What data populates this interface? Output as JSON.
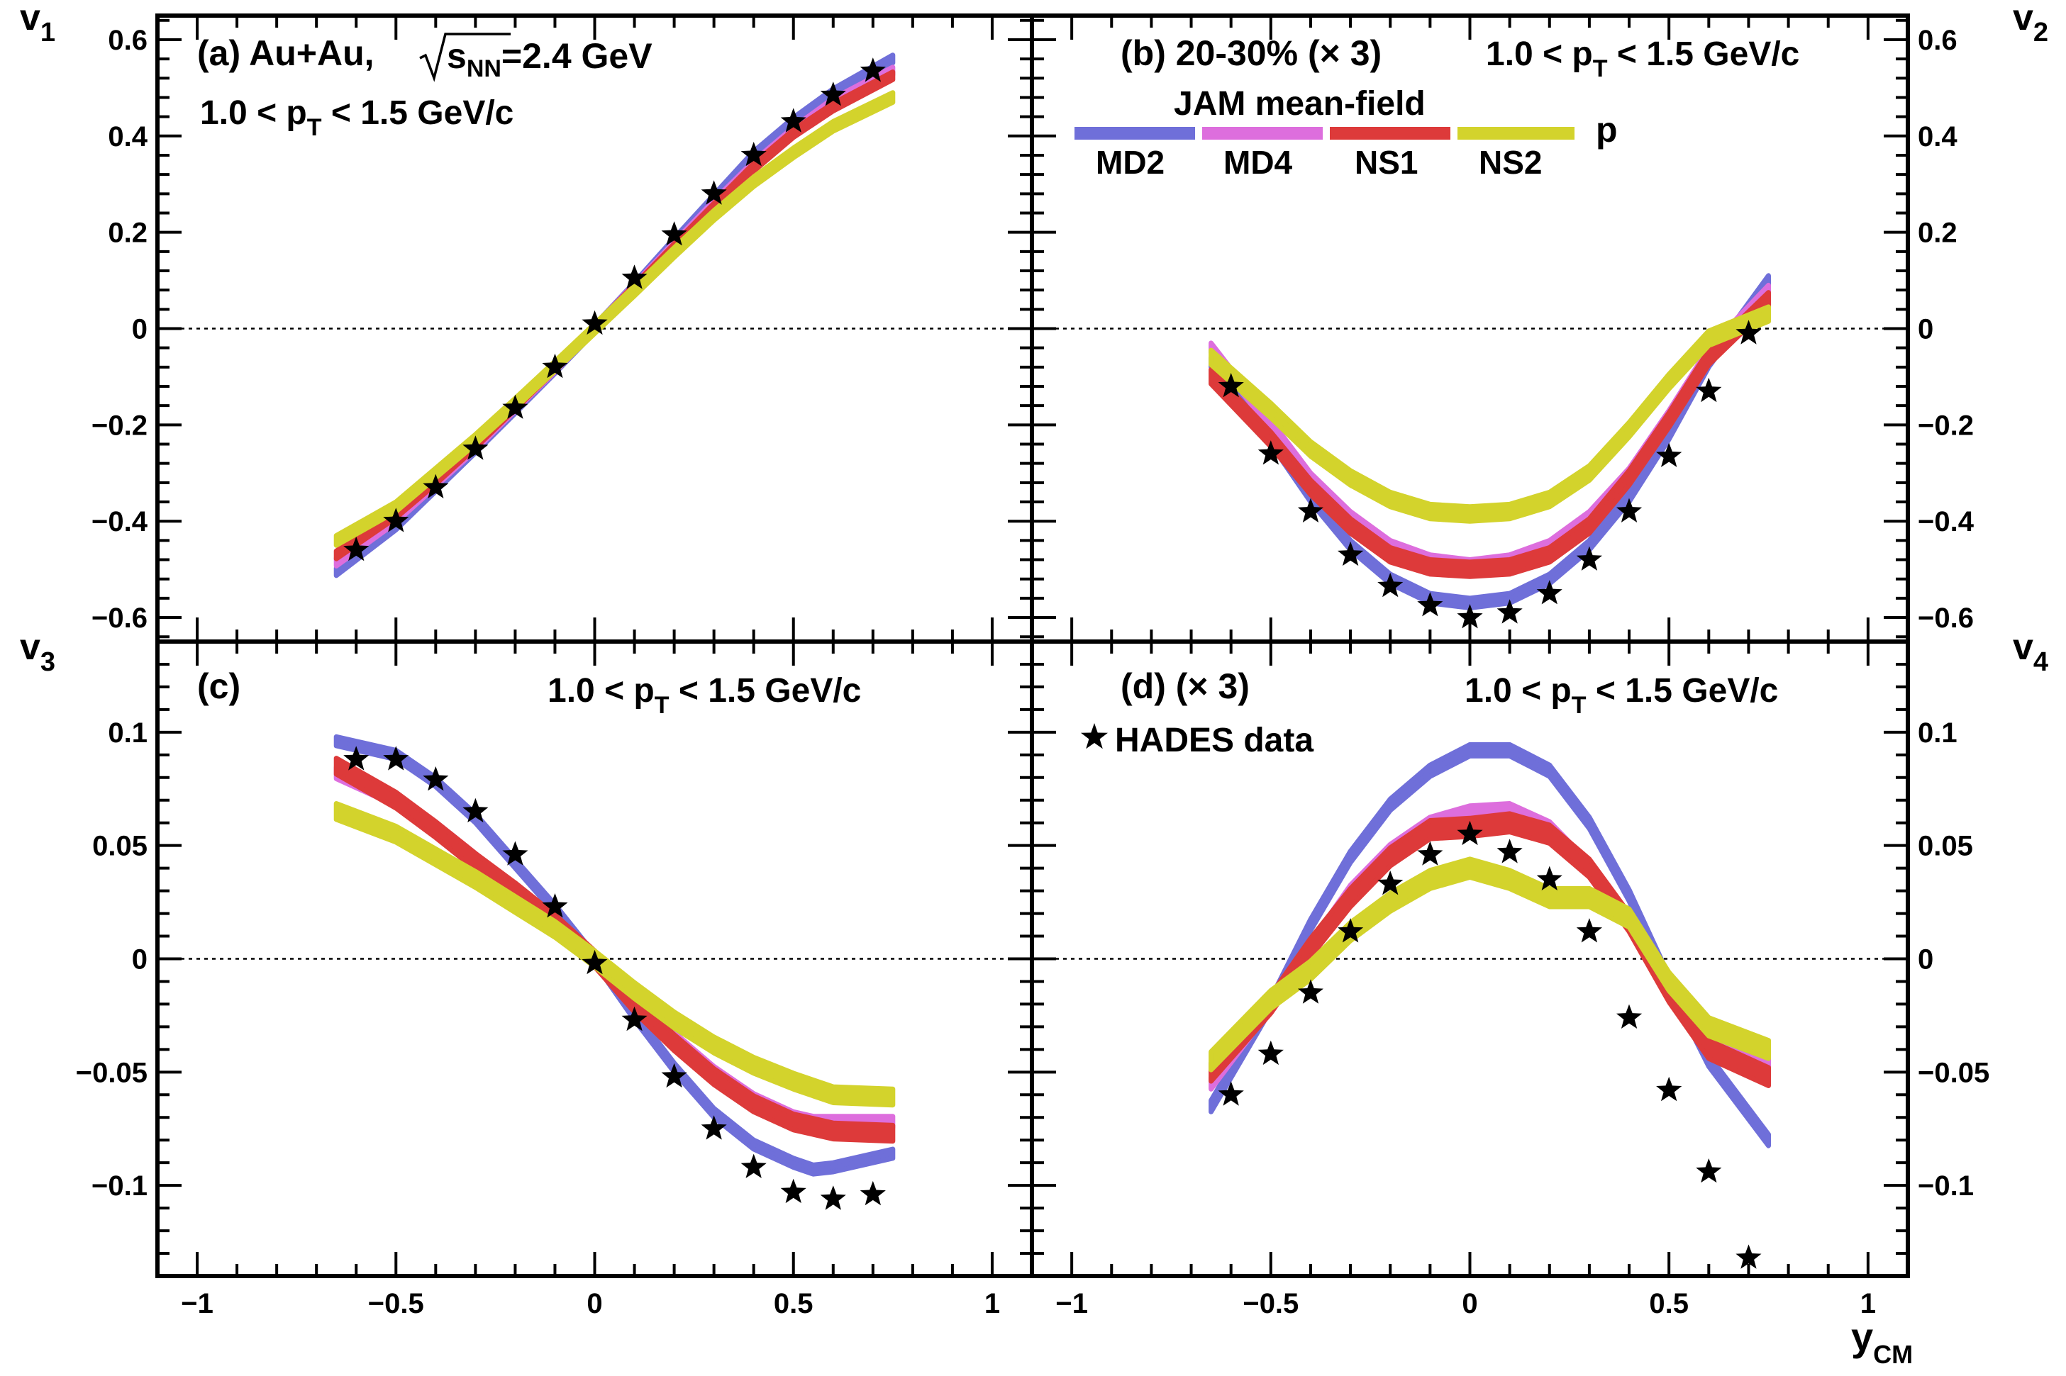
{
  "colors": {
    "MD2": "#6f6fd9",
    "MD4": "#dd6edd",
    "NS1": "#dd3a3a",
    "NS2": "#d3d32c",
    "data": "#000000"
  },
  "chart_data": [
    {
      "type": "line",
      "panel": "a",
      "ylabel": "v",
      "ylabel_sub": "1",
      "ylim": [
        -0.65,
        0.65
      ],
      "yticks": [
        -0.6,
        -0.4,
        -0.2,
        0,
        0.2,
        0.4,
        0.6
      ],
      "ytick_labels": [
        "−0.6",
        "−0.4",
        "−0.2",
        "0",
        "0.2",
        "0.4",
        "0.6"
      ],
      "xlim": [
        -1.1,
        1.1
      ],
      "annotations": {
        "line1": "(a) Au+Au,",
        "sqrt_label": "s",
        "sqrt_sub": "NN",
        "energy": "=2.4 GeV",
        "pt_range": "1.0 < p",
        "pt_sub": "T",
        "pt_range2": " < 1.5 GeV/c"
      },
      "x": [
        -0.65,
        -0.5,
        -0.4,
        -0.3,
        -0.2,
        -0.1,
        0,
        0.1,
        0.2,
        0.3,
        0.4,
        0.5,
        0.6,
        0.75
      ],
      "series": [
        {
          "name": "MD2",
          "values": [
            -0.505,
            -0.41,
            -0.33,
            -0.25,
            -0.168,
            -0.085,
            0,
            0.088,
            0.18,
            0.27,
            0.36,
            0.43,
            0.49,
            0.56
          ],
          "width": 0.016
        },
        {
          "name": "MD4",
          "values": [
            -0.485,
            -0.395,
            -0.32,
            -0.245,
            -0.163,
            -0.082,
            0,
            0.085,
            0.172,
            0.258,
            0.34,
            0.41,
            0.47,
            0.535
          ],
          "width": 0.016
        },
        {
          "name": "NS1",
          "values": [
            -0.47,
            -0.385,
            -0.315,
            -0.24,
            -0.16,
            -0.08,
            0,
            0.083,
            0.168,
            0.252,
            0.335,
            0.405,
            0.46,
            0.525
          ],
          "width": 0.016
        },
        {
          "name": "NS2",
          "values": [
            -0.44,
            -0.37,
            -0.3,
            -0.23,
            -0.155,
            -0.078,
            0,
            0.078,
            0.158,
            0.235,
            0.305,
            0.365,
            0.42,
            0.48
          ],
          "width": 0.02
        }
      ],
      "points": {
        "x": [
          -0.6,
          -0.5,
          -0.4,
          -0.3,
          -0.2,
          -0.1,
          0,
          0.1,
          0.2,
          0.3,
          0.4,
          0.5,
          0.6,
          0.7
        ],
        "y": [
          -0.46,
          -0.4,
          -0.33,
          -0.25,
          -0.165,
          -0.08,
          0.01,
          0.105,
          0.195,
          0.28,
          0.36,
          0.43,
          0.485,
          0.535
        ]
      }
    },
    {
      "type": "line",
      "panel": "b",
      "ylabel": "v",
      "ylabel_sub": "2",
      "ylim": [
        -0.65,
        0.65
      ],
      "yticks": [
        -0.6,
        -0.4,
        -0.2,
        0,
        0.2,
        0.4,
        0.6
      ],
      "ytick_labels": [
        "−0.6",
        "−0.4",
        "−0.2",
        "0",
        "0.2",
        "0.4",
        "0.6"
      ],
      "xlim": [
        -1.1,
        1.1
      ],
      "annotations": {
        "label": "(b)  20-30% (× 3)",
        "pt_range": "1.0 < p",
        "pt_sub": "T",
        "pt_range2": " < 1.5 GeV/c",
        "legend_title": "JAM mean-field",
        "particle": "p",
        "legend_labels": [
          "MD2",
          "MD4",
          "NS1",
          "NS2"
        ]
      },
      "x": [
        -0.65,
        -0.5,
        -0.4,
        -0.3,
        -0.2,
        -0.1,
        0,
        0.1,
        0.2,
        0.3,
        0.4,
        0.5,
        0.6,
        0.75
      ],
      "series": [
        {
          "name": "MD2",
          "values": [
            -0.07,
            -0.23,
            -0.35,
            -0.45,
            -0.52,
            -0.56,
            -0.57,
            -0.56,
            -0.52,
            -0.45,
            -0.35,
            -0.22,
            -0.07,
            0.1
          ],
          "width": 0.02
        },
        {
          "name": "MD4",
          "values": [
            -0.04,
            -0.2,
            -0.31,
            -0.39,
            -0.45,
            -0.48,
            -0.49,
            -0.48,
            -0.45,
            -0.39,
            -0.3,
            -0.18,
            -0.05,
            0.08
          ],
          "width": 0.02
        },
        {
          "name": "NS1",
          "values": [
            -0.1,
            -0.23,
            -0.33,
            -0.41,
            -0.47,
            -0.495,
            -0.5,
            -0.495,
            -0.47,
            -0.41,
            -0.31,
            -0.19,
            -0.06,
            0.06
          ],
          "width": 0.03
        },
        {
          "name": "NS2",
          "values": [
            -0.06,
            -0.17,
            -0.25,
            -0.31,
            -0.355,
            -0.38,
            -0.385,
            -0.38,
            -0.355,
            -0.3,
            -0.21,
            -0.11,
            -0.02,
            0.03
          ],
          "width": 0.03
        }
      ],
      "points": {
        "x": [
          -0.6,
          -0.5,
          -0.4,
          -0.3,
          -0.2,
          -0.1,
          0,
          0.1,
          0.2,
          0.3,
          0.4,
          0.5,
          0.6,
          0.7
        ],
        "y": [
          -0.12,
          -0.26,
          -0.38,
          -0.47,
          -0.535,
          -0.575,
          -0.6,
          -0.59,
          -0.55,
          -0.48,
          -0.38,
          -0.265,
          -0.13,
          -0.01
        ]
      }
    },
    {
      "type": "line",
      "panel": "c",
      "ylabel": "v",
      "ylabel_sub": "3",
      "ylim": [
        -0.14,
        0.14
      ],
      "yticks": [
        -0.1,
        -0.05,
        0,
        0.05,
        0.1
      ],
      "ytick_labels": [
        "−0.1",
        "−0.05",
        "0",
        "0.05",
        "0.1"
      ],
      "xlim": [
        -1.1,
        1.1
      ],
      "xticks": [
        -1,
        -0.5,
        0,
        0.5,
        1
      ],
      "xtick_labels": [
        "−1",
        "−0.5",
        "0",
        "0.5",
        "1"
      ],
      "annotations": {
        "label": "(c)",
        "pt_range": "1.0 < p",
        "pt_sub": "T",
        "pt_range2": " < 1.5 GeV/c"
      },
      "x": [
        -0.65,
        -0.5,
        -0.4,
        -0.3,
        -0.2,
        -0.1,
        0,
        0.1,
        0.2,
        0.3,
        0.4,
        0.5,
        0.55,
        0.6,
        0.75
      ],
      "series": [
        {
          "name": "MD2",
          "values": [
            0.096,
            0.09,
            0.078,
            0.062,
            0.042,
            0.022,
            0,
            -0.025,
            -0.048,
            -0.068,
            -0.082,
            -0.09,
            -0.093,
            -0.092,
            -0.086
          ],
          "width": 0.004
        },
        {
          "name": "MD4",
          "values": [
            0.082,
            0.07,
            0.058,
            0.044,
            0.03,
            0.016,
            0,
            -0.018,
            -0.035,
            -0.05,
            -0.062,
            -0.07,
            -0.072,
            -0.072,
            -0.072
          ],
          "width": 0.005
        },
        {
          "name": "NS1",
          "values": [
            0.085,
            0.07,
            0.057,
            0.043,
            0.03,
            0.016,
            0,
            -0.02,
            -0.037,
            -0.052,
            -0.064,
            -0.072,
            -0.074,
            -0.076,
            -0.077
          ],
          "width": 0.007
        },
        {
          "name": "NS2",
          "values": [
            0.065,
            0.055,
            0.045,
            0.035,
            0.024,
            0.013,
            0,
            -0.014,
            -0.027,
            -0.038,
            -0.047,
            -0.054,
            -0.057,
            -0.06,
            -0.061
          ],
          "width": 0.007
        }
      ],
      "points": {
        "x": [
          -0.6,
          -0.5,
          -0.4,
          -0.3,
          -0.2,
          -0.1,
          0,
          0.1,
          0.2,
          0.3,
          0.4,
          0.5,
          0.6,
          0.7
        ],
        "y": [
          0.088,
          0.088,
          0.079,
          0.065,
          0.046,
          0.023,
          -0.002,
          -0.027,
          -0.052,
          -0.075,
          -0.092,
          -0.103,
          -0.106,
          -0.104
        ]
      }
    },
    {
      "type": "line",
      "panel": "d",
      "ylabel": "v",
      "ylabel_sub": "4",
      "ylim": [
        -0.14,
        0.14
      ],
      "yticks": [
        -0.1,
        -0.05,
        0,
        0.05,
        0.1
      ],
      "ytick_labels": [
        "−0.1",
        "−0.05",
        "0",
        "0.05",
        "0.1"
      ],
      "xlim": [
        -1.1,
        1.1
      ],
      "xticks": [
        -1,
        -0.5,
        0,
        0.5,
        1
      ],
      "xtick_labels": [
        "−1",
        "−0.5",
        "0",
        "0.5",
        "1"
      ],
      "xlabel": "y",
      "xlabel_sub": "CM",
      "annotations": {
        "label": "(d) (× 3)",
        "pt_range": "1.0 < p",
        "pt_sub": "T",
        "pt_range2": " < 1.5 GeV/c",
        "data_legend": "HADES data"
      },
      "x": [
        -0.65,
        -0.5,
        -0.4,
        -0.3,
        -0.2,
        -0.1,
        0,
        0.1,
        0.2,
        0.3,
        0.4,
        0.5,
        0.6,
        0.75
      ],
      "series": [
        {
          "name": "MD2",
          "values": [
            -0.065,
            -0.02,
            0.015,
            0.045,
            0.068,
            0.083,
            0.092,
            0.092,
            0.083,
            0.06,
            0.028,
            -0.01,
            -0.045,
            -0.08
          ],
          "width": 0.005
        },
        {
          "name": "MD4",
          "values": [
            -0.055,
            -0.02,
            0.005,
            0.03,
            0.048,
            0.06,
            0.065,
            0.066,
            0.058,
            0.04,
            0.015,
            -0.015,
            -0.035,
            -0.045
          ],
          "width": 0.005
        },
        {
          "name": "NS1",
          "values": [
            -0.05,
            -0.02,
            0.005,
            0.027,
            0.045,
            0.057,
            0.058,
            0.06,
            0.055,
            0.04,
            0.016,
            -0.015,
            -0.04,
            -0.052
          ],
          "width": 0.008
        },
        {
          "name": "NS2",
          "values": [
            -0.045,
            -0.018,
            -0.005,
            0.012,
            0.025,
            0.035,
            0.04,
            0.035,
            0.027,
            0.027,
            0.018,
            -0.01,
            -0.03,
            -0.04
          ],
          "width": 0.008
        }
      ],
      "points": {
        "x": [
          -0.6,
          -0.5,
          -0.4,
          -0.3,
          -0.2,
          -0.1,
          0,
          0.1,
          0.2,
          0.3,
          0.4,
          0.5,
          0.6,
          0.7
        ],
        "y": [
          -0.06,
          -0.042,
          -0.015,
          0.012,
          0.033,
          0.046,
          0.055,
          0.047,
          0.035,
          0.012,
          -0.026,
          -0.058,
          -0.094,
          -0.132
        ]
      }
    }
  ]
}
